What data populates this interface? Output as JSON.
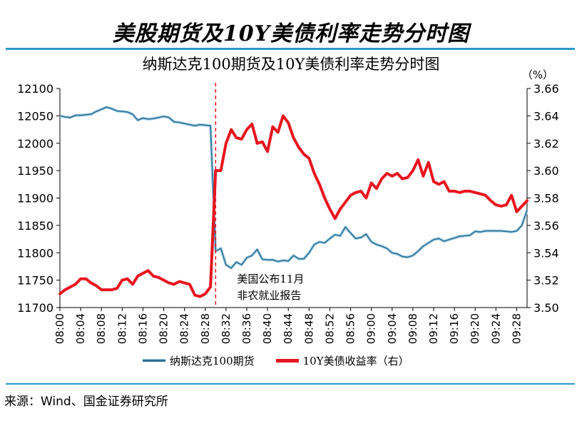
{
  "header": {
    "title": "美股期货及10Y美债利率走势分时图"
  },
  "source": {
    "text": "来源：Wind、国金证券研究所"
  },
  "chart_data": {
    "type": "line",
    "title": "纳斯达克100期货及10Y美债利率走势分时图",
    "right_unit": "（%）",
    "x": [
      "08:00",
      "08:01",
      "08:02",
      "08:03",
      "08:04",
      "08:05",
      "08:06",
      "08:07",
      "08:08",
      "08:09",
      "08:10",
      "08:11",
      "08:12",
      "08:13",
      "08:14",
      "08:15",
      "08:16",
      "08:17",
      "08:18",
      "08:19",
      "08:20",
      "08:21",
      "08:22",
      "08:23",
      "08:24",
      "08:25",
      "08:26",
      "08:27",
      "08:28",
      "08:29",
      "08:30",
      "08:31",
      "08:32",
      "08:33",
      "08:34",
      "08:35",
      "08:36",
      "08:37",
      "08:38",
      "08:39",
      "08:40",
      "08:41",
      "08:42",
      "08:43",
      "08:44",
      "08:45",
      "08:46",
      "08:47",
      "08:48",
      "08:49",
      "08:50",
      "08:51",
      "08:52",
      "08:53",
      "08:54",
      "08:55",
      "08:56",
      "08:57",
      "08:58",
      "08:59",
      "09:00",
      "09:01",
      "09:02",
      "09:03",
      "09:04",
      "09:05",
      "09:06",
      "09:07",
      "09:08",
      "09:09",
      "09:10",
      "09:11",
      "09:12",
      "09:13",
      "09:14",
      "09:15",
      "09:16",
      "09:17",
      "09:18",
      "09:19",
      "09:20",
      "09:21",
      "09:22",
      "09:23",
      "09:24",
      "09:25",
      "09:26",
      "09:27",
      "09:28",
      "09:29",
      "09:30"
    ],
    "x_tick_labels": [
      "08:00",
      "08:04",
      "08:08",
      "08:12",
      "08:16",
      "08:20",
      "08:24",
      "08:28",
      "08:32",
      "08:36",
      "08:40",
      "08:44",
      "08:48",
      "08:52",
      "08:56",
      "09:00",
      "09:04",
      "09:08",
      "09:12",
      "09:16",
      "09:20",
      "09:24",
      "09:28"
    ],
    "x_tick_every": 4,
    "left_axis": {
      "ylim": [
        11700,
        12100
      ],
      "ticks": [
        11700,
        11750,
        11800,
        11850,
        11900,
        11950,
        12000,
        12050,
        12100
      ]
    },
    "right_axis": {
      "ylim": [
        3.5,
        3.66
      ],
      "ticks": [
        3.5,
        3.52,
        3.54,
        3.56,
        3.58,
        3.6,
        3.62,
        3.64,
        3.66
      ]
    },
    "series": [
      {
        "name": "纳斯达克100期货",
        "axis": "left",
        "color": "#2d6f94",
        "values": [
          12050,
          12048,
          12047,
          12051,
          12051,
          12052,
          12053,
          12058,
          12062,
          12066,
          12063,
          12059,
          12058,
          12057,
          12053,
          12042,
          12046,
          12044,
          12045,
          12047,
          12049,
          12047,
          12039,
          12038,
          12036,
          12034,
          12032,
          12034,
          12033,
          12032,
          11803,
          11808,
          11778,
          11772,
          11783,
          11778,
          11791,
          11795,
          11806,
          11788,
          11787,
          11787,
          11784,
          11786,
          11785,
          11795,
          11789,
          11789,
          11800,
          11815,
          11820,
          11818,
          11826,
          11833,
          11831,
          11847,
          11836,
          11826,
          11828,
          11834,
          11820,
          11815,
          11812,
          11808,
          11800,
          11798,
          11793,
          11792,
          11795,
          11803,
          11812,
          11818,
          11824,
          11826,
          11821,
          11824,
          11827,
          11830,
          11831,
          11832,
          11839,
          11838,
          11840,
          11840,
          11840,
          11840,
          11839,
          11838,
          11840,
          11850,
          11878
        ]
      },
      {
        "name": "10Y美债收益率（右）",
        "axis": "right",
        "color": "#e8151f",
        "values": [
          3.51,
          3.513,
          3.515,
          3.517,
          3.521,
          3.521,
          3.518,
          3.516,
          3.513,
          3.513,
          3.513,
          3.514,
          3.52,
          3.521,
          3.517,
          3.523,
          3.525,
          3.527,
          3.523,
          3.522,
          3.52,
          3.518,
          3.517,
          3.519,
          3.518,
          3.517,
          3.509,
          3.508,
          3.51,
          3.515,
          3.6,
          3.6,
          3.62,
          3.63,
          3.624,
          3.623,
          3.63,
          3.634,
          3.62,
          3.621,
          3.614,
          3.632,
          3.628,
          3.64,
          3.635,
          3.624,
          3.617,
          3.612,
          3.609,
          3.598,
          3.59,
          3.58,
          3.572,
          3.565,
          3.572,
          3.577,
          3.582,
          3.584,
          3.585,
          3.58,
          3.591,
          3.587,
          3.594,
          3.598,
          3.596,
          3.598,
          3.594,
          3.595,
          3.6,
          3.608,
          3.596,
          3.606,
          3.592,
          3.59,
          3.592,
          3.585,
          3.585,
          3.584,
          3.585,
          3.585,
          3.584,
          3.583,
          3.582,
          3.578,
          3.575,
          3.574,
          3.575,
          3.582,
          3.57,
          3.574,
          3.578
        ]
      }
    ],
    "annotation": {
      "event_x": "08:30",
      "lines": [
        "美国公布11月",
        "非农就业报告"
      ],
      "line_color": "#e8151f",
      "line_style": "dashed"
    },
    "legend_position": "bottom",
    "grid": false
  }
}
